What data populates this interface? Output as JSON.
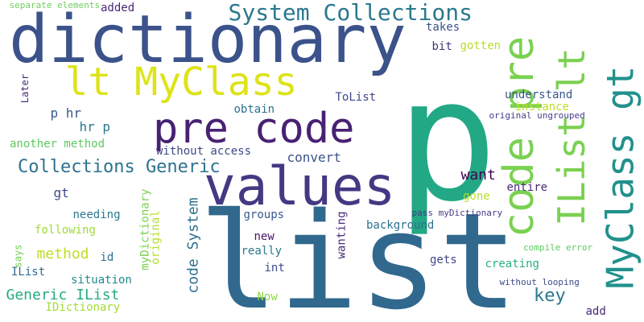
{
  "words": [
    {
      "text": "p",
      "color": "#22a884"
    },
    {
      "text": "list",
      "color": "#31688e"
    },
    {
      "text": "dictionary",
      "color": "#3b528b"
    },
    {
      "text": "values",
      "color": "#443983"
    },
    {
      "text": "pre code",
      "color": "#482173"
    },
    {
      "text": "lt MyClass",
      "color": "#dde318"
    },
    {
      "text": "IList lt",
      "color": "#7ad151"
    },
    {
      "text": "MyClass gt",
      "color": "#21918c"
    },
    {
      "text": "code pre",
      "color": "#7ad151"
    },
    {
      "text": "System Collections",
      "color": "#2a788e"
    },
    {
      "text": "Collections Generic",
      "color": "#2c728e"
    },
    {
      "text": "code System",
      "color": "#2d708e"
    },
    {
      "text": "Generic IList",
      "color": "#25ab82"
    },
    {
      "text": "method",
      "color": "#bddf26"
    },
    {
      "text": "key",
      "color": "#2a788e"
    },
    {
      "text": "want",
      "color": "#440154"
    },
    {
      "text": "convert",
      "color": "#3b528b"
    },
    {
      "text": "p hr",
      "color": "#38598c"
    },
    {
      "text": "hr p",
      "color": "#2a788e"
    },
    {
      "text": "gt",
      "color": "#3e4989"
    },
    {
      "text": "separate elements",
      "color": "#6ece58"
    },
    {
      "text": "added",
      "color": "#482677"
    },
    {
      "text": "takes",
      "color": "#3b528b"
    },
    {
      "text": "bit",
      "color": "#46327e"
    },
    {
      "text": "gotten",
      "color": "#b5de2b"
    },
    {
      "text": "understand",
      "color": "#39568c"
    },
    {
      "text": "instance",
      "color": "#bddf26"
    },
    {
      "text": "original ungrouped",
      "color": "#433e85"
    },
    {
      "text": "ToList",
      "color": "#3e4989"
    },
    {
      "text": "Later",
      "color": "#472d7b"
    },
    {
      "text": "obtain",
      "color": "#2c728e"
    },
    {
      "text": "another method",
      "color": "#5ec962"
    },
    {
      "text": "without access",
      "color": "#3e4989"
    },
    {
      "text": "entire",
      "color": "#482878"
    },
    {
      "text": "gone",
      "color": "#b5de2b"
    },
    {
      "text": "pass myDictionary",
      "color": "#443a83"
    },
    {
      "text": "needing",
      "color": "#2a788e"
    },
    {
      "text": "following",
      "color": "#a0da39"
    },
    {
      "text": "groups",
      "color": "#38598c"
    },
    {
      "text": "background",
      "color": "#2d708e"
    },
    {
      "text": "myDictionary",
      "color": "#7ad151"
    },
    {
      "text": "original",
      "color": "#b5de2b"
    },
    {
      "text": "wanting",
      "color": "#472c7a"
    },
    {
      "text": "new",
      "color": "#481467"
    },
    {
      "text": "really",
      "color": "#2a788e"
    },
    {
      "text": "int",
      "color": "#3e4989"
    },
    {
      "text": "id",
      "color": "#2d708e"
    },
    {
      "text": "says",
      "color": "#75d054"
    },
    {
      "text": "IList",
      "color": "#31688e"
    },
    {
      "text": "situation",
      "color": "#238a8d"
    },
    {
      "text": "IDictionary",
      "color": "#a5db36"
    },
    {
      "text": "gets",
      "color": "#414487"
    },
    {
      "text": "creating",
      "color": "#29af7f"
    },
    {
      "text": "compile error",
      "color": "#5ec962"
    },
    {
      "text": "without looping",
      "color": "#3e4c8a"
    },
    {
      "text": "Now",
      "color": "#8ed645"
    },
    {
      "text": "add",
      "color": "#482878"
    }
  ]
}
